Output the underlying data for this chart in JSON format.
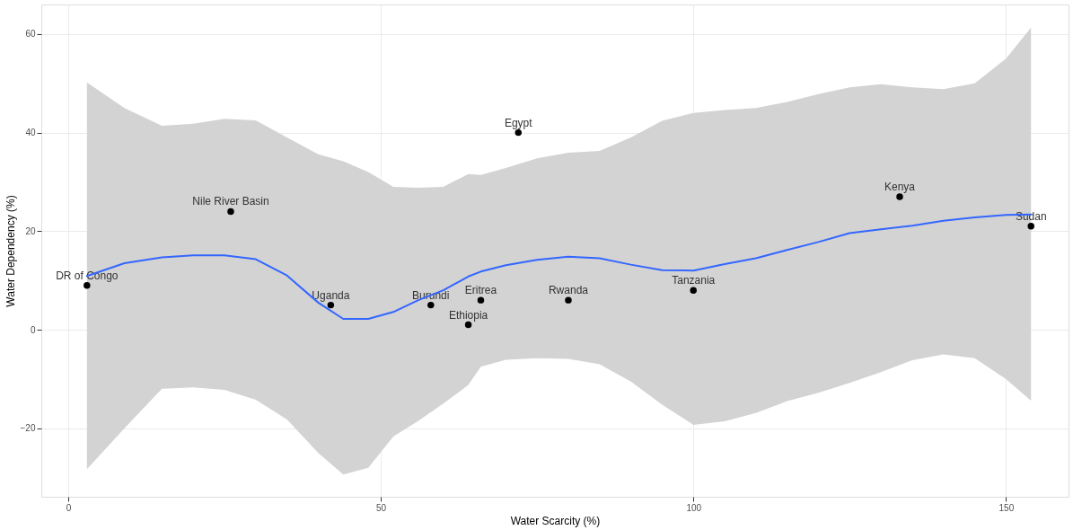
{
  "chart_data": {
    "type": "scatter",
    "xlabel": "Water Scarcity (%)",
    "ylabel": "Water Dependency (%)",
    "xlim": [
      -4.3,
      160
    ],
    "ylim": [
      -33.9,
      66
    ],
    "xticks": [
      0,
      50,
      100,
      150
    ],
    "yticks": [
      -20,
      0,
      20,
      40,
      60
    ],
    "grid": true,
    "marker": "circle",
    "series": [
      {
        "color": "#000000",
        "x": [
          3,
          26,
          42,
          58,
          64,
          66,
          72,
          80,
          100,
          133,
          154
        ],
        "values": [
          9,
          24,
          5,
          5,
          1,
          6,
          40,
          6,
          8,
          27,
          21
        ]
      },
      {
        "type": "line",
        "color": "#3366ff",
        "line_style": "solid",
        "marker": "none",
        "x": [
          3,
          9,
          15,
          20,
          25,
          30,
          35,
          40,
          44,
          48,
          52,
          56,
          60,
          64,
          66,
          70,
          75,
          80,
          85,
          90,
          95,
          100,
          105,
          110,
          115,
          120,
          125,
          130,
          135,
          140,
          145,
          150,
          154
        ],
        "values": [
          10.9,
          13.5,
          14.7,
          15.1,
          15.1,
          14.3,
          11,
          5.5,
          2.2,
          2.2,
          3.6,
          6,
          8,
          10.8,
          11.8,
          13.1,
          14.2,
          14.8,
          14.5,
          13.2,
          12.1,
          12,
          13.3,
          14.5,
          16.2,
          17.8,
          19.6,
          20.4,
          21.1,
          22.1,
          22.8,
          23.3,
          23.4
        ],
        "upper": [
          50.2,
          45,
          41.4,
          41.8,
          42.8,
          42.5,
          39,
          35.6,
          34.2,
          32,
          29,
          28.8,
          29,
          31.6,
          31.4,
          32.8,
          34.8,
          35.9,
          36.3,
          39,
          42.4,
          44,
          44.6,
          45,
          46.2,
          47.8,
          49.2,
          49.8,
          49.2,
          48.8,
          50,
          55,
          61.3
        ],
        "lower": [
          -28.3,
          -20,
          -12,
          -11.7,
          -12.2,
          -14.2,
          -18.2,
          -25,
          -29.4,
          -28,
          -21.7,
          -18.5,
          -15,
          -11.2,
          -7.5,
          -6.1,
          -5.8,
          -5.9,
          -7,
          -10.5,
          -15.2,
          -19.3,
          -18.6,
          -16.9,
          -14.5,
          -12.8,
          -10.8,
          -8.6,
          -6.2,
          -5,
          -5.8,
          -10,
          -14.4
        ]
      }
    ],
    "annotations": [
      {
        "text": "DR of Congo",
        "x": 3,
        "y": 9
      },
      {
        "text": "Nile River Basin",
        "x": 26,
        "y": 24
      },
      {
        "text": "Uganda",
        "x": 42,
        "y": 5
      },
      {
        "text": "Burundi",
        "x": 58,
        "y": 5
      },
      {
        "text": "Ethiopia",
        "x": 64,
        "y": 1
      },
      {
        "text": "Eritrea",
        "x": 66,
        "y": 6
      },
      {
        "text": "Egypt",
        "x": 72,
        "y": 40
      },
      {
        "text": "Rwanda",
        "x": 80,
        "y": 6
      },
      {
        "text": "Tanzania",
        "x": 100,
        "y": 8
      },
      {
        "text": "Kenya",
        "x": 133,
        "y": 27
      },
      {
        "text": "Sudan",
        "x": 154,
        "y": 21
      }
    ]
  }
}
